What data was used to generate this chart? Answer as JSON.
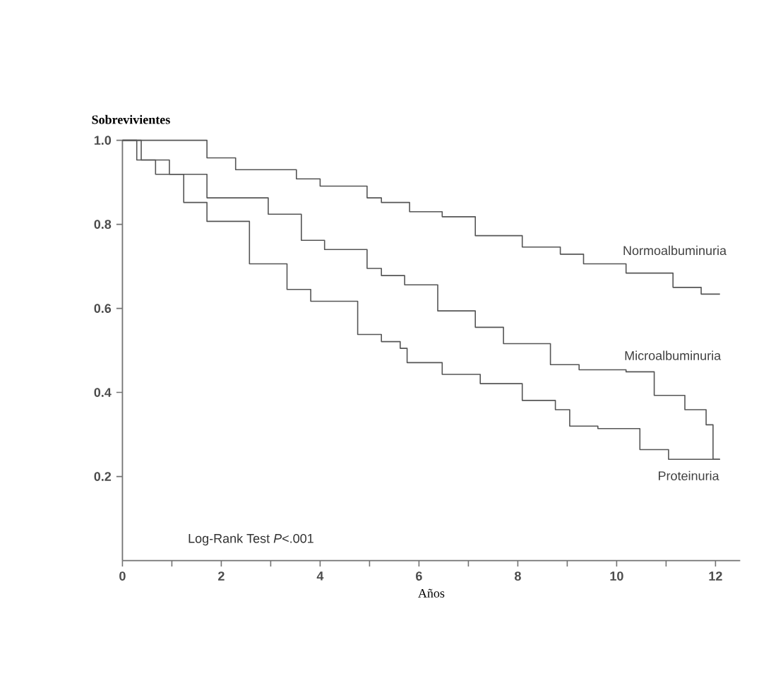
{
  "chart_data": {
    "type": "step",
    "xlabel": "Años",
    "ylabel": "Sobrevivientes",
    "xlim": [
      0,
      12.5
    ],
    "ylim": [
      0,
      1.0
    ],
    "xticks": [
      0,
      {
        "value": 1,
        "label": null
      },
      2,
      {
        "value": 3,
        "label": null
      },
      4,
      {
        "value": 5,
        "label": null
      },
      6,
      {
        "value": 7,
        "label": null
      },
      8,
      {
        "value": 9,
        "label": null
      },
      10,
      {
        "value": 11,
        "label": null
      },
      12
    ],
    "yticks": [
      0.2,
      0.4,
      0.6,
      0.8,
      {
        "value": 1.0,
        "label": "1.0"
      }
    ],
    "grid": false,
    "legend": false,
    "marker": "none",
    "line_style": "solid",
    "annotations": [
      "Log-Rank Test *P*<.001"
    ],
    "series": [
      {
        "name": "Normoalbuminuria",
        "color": "#555555",
        "x": [
          0,
          1.71,
          2.29,
          3.52,
          4.0,
          4.95,
          5.24,
          5.81,
          6.47,
          7.14,
          8.09,
          8.86,
          9.33,
          10.19,
          11.14,
          11.71,
          12.09
        ],
        "values": [
          1.0,
          0.958,
          0.93,
          0.908,
          0.891,
          0.863,
          0.852,
          0.83,
          0.818,
          0.773,
          0.746,
          0.729,
          0.706,
          0.684,
          0.65,
          0.634,
          0.634
        ]
      },
      {
        "name": "Microalbuminuria",
        "color": "#555555",
        "x": [
          0,
          0.38,
          0.95,
          1.71,
          2.95,
          3.62,
          4.09,
          4.95,
          5.24,
          5.71,
          6.38,
          7.14,
          7.71,
          8.66,
          9.24,
          10.19,
          10.76,
          11.38,
          11.81,
          11.95,
          12.09
        ],
        "values": [
          1.0,
          0.953,
          0.919,
          0.863,
          0.824,
          0.762,
          0.74,
          0.695,
          0.678,
          0.656,
          0.594,
          0.555,
          0.516,
          0.466,
          0.454,
          0.449,
          0.393,
          0.359,
          0.323,
          0.241,
          0.241
        ]
      },
      {
        "name": "Proteinuria",
        "color": "#555555",
        "x": [
          0,
          0.29,
          0.67,
          1.24,
          1.71,
          2.57,
          3.33,
          3.81,
          4.76,
          5.24,
          5.62,
          5.76,
          6.47,
          7.24,
          8.09,
          8.76,
          9.05,
          9.62,
          10.47,
          11.05,
          12.09
        ],
        "values": [
          1.0,
          0.953,
          0.919,
          0.852,
          0.807,
          0.706,
          0.645,
          0.617,
          0.538,
          0.521,
          0.505,
          0.471,
          0.443,
          0.421,
          0.381,
          0.359,
          0.32,
          0.314,
          0.264,
          0.241,
          0.241
        ]
      }
    ]
  }
}
